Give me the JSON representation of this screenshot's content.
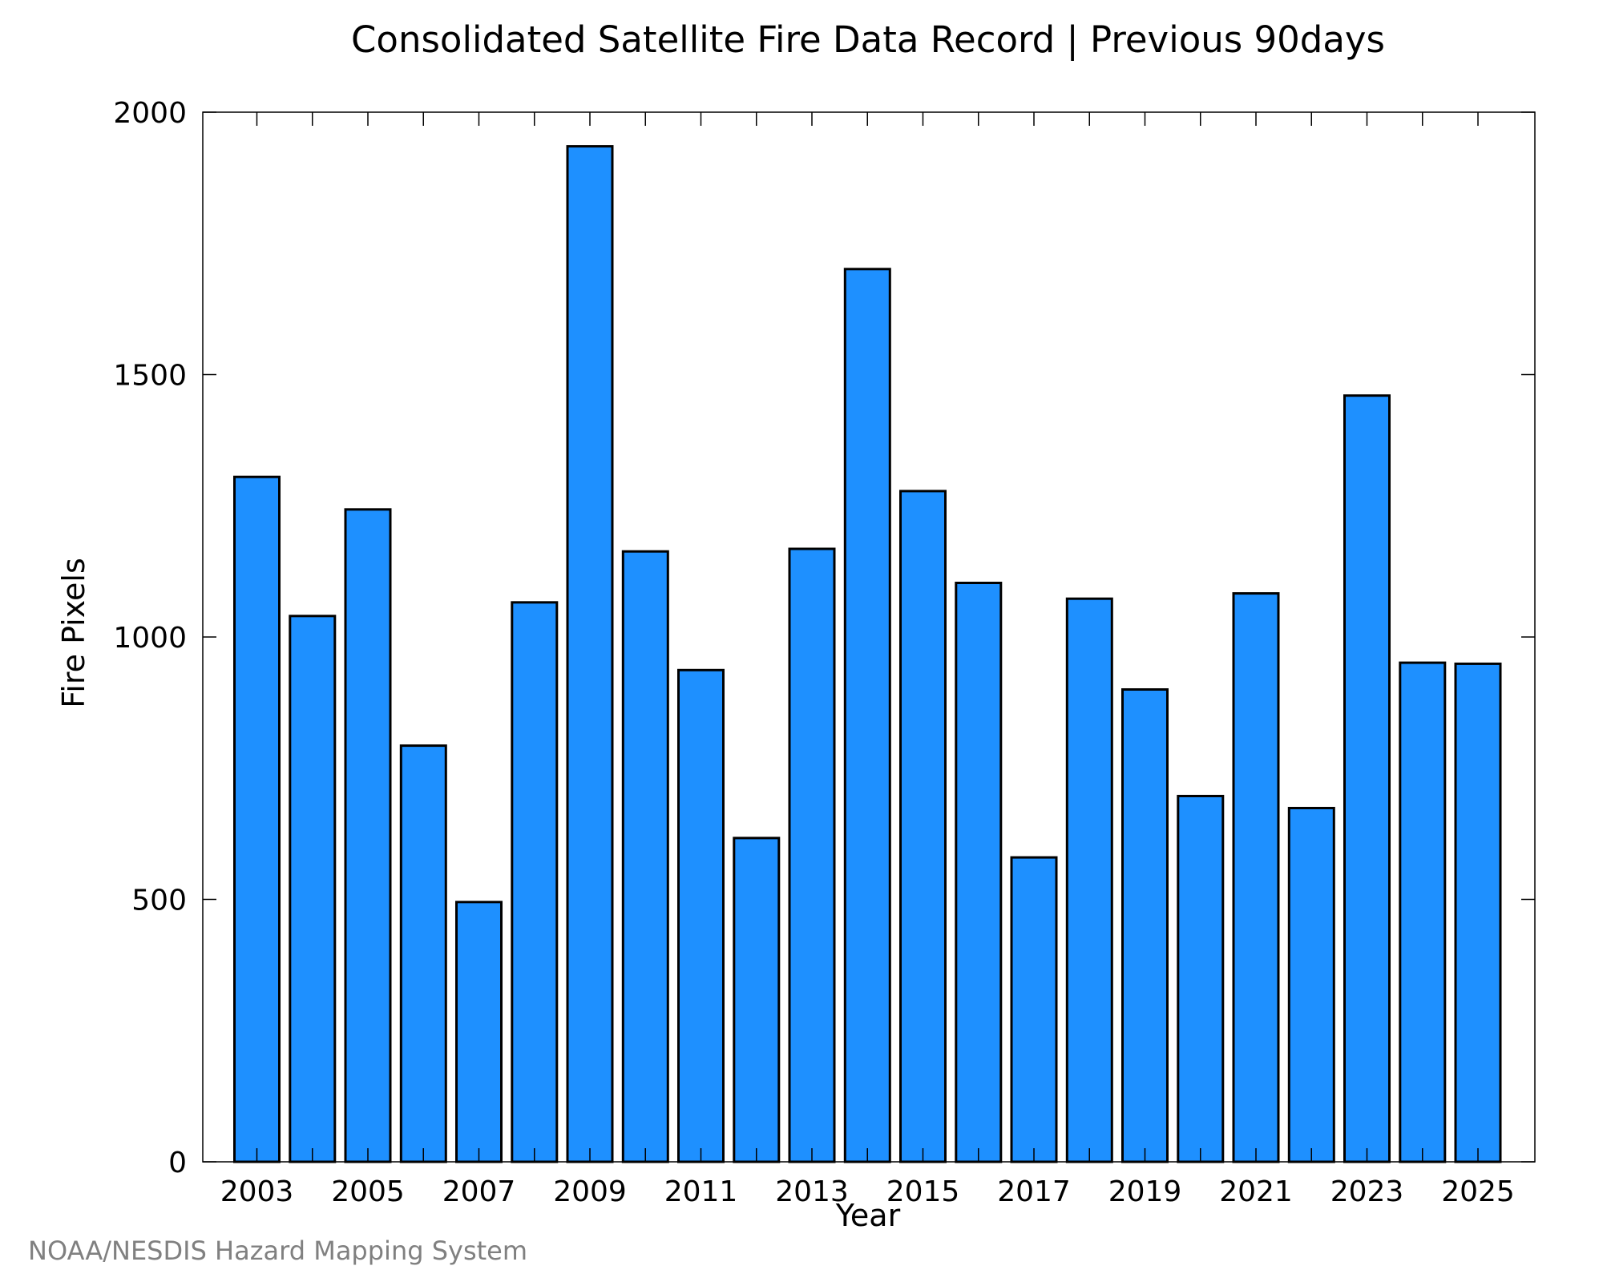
{
  "chart_data": {
    "type": "bar",
    "title": "Consolidated Satellite Fire Data Record | Previous 90days",
    "xlabel": "Year",
    "ylabel": "Fire Pixels",
    "categories": [
      "2003",
      "2004",
      "2005",
      "2006",
      "2007",
      "2008",
      "2009",
      "2010",
      "2011",
      "2012",
      "2013",
      "2014",
      "2015",
      "2016",
      "2017",
      "2018",
      "2019",
      "2020",
      "2021",
      "2022",
      "2023",
      "2024",
      "2025"
    ],
    "x_tick_labels": [
      "2003",
      "2005",
      "2007",
      "2009",
      "2011",
      "2013",
      "2015",
      "2017",
      "2019",
      "2021",
      "2023",
      "2025"
    ],
    "values": [
      1305,
      1040,
      1243,
      793,
      495,
      1066,
      1935,
      1163,
      937,
      617,
      1168,
      1701,
      1278,
      1103,
      580,
      1073,
      900,
      697,
      1083,
      674,
      1460,
      951,
      949
    ],
    "ylim": [
      0,
      2000
    ],
    "y_ticks": [
      0,
      500,
      1000,
      1500,
      2000
    ],
    "bar_color": "#1e90ff",
    "edge_color": "#000000",
    "grid": false,
    "credit": "NOAA/NESDIS Hazard Mapping System"
  }
}
